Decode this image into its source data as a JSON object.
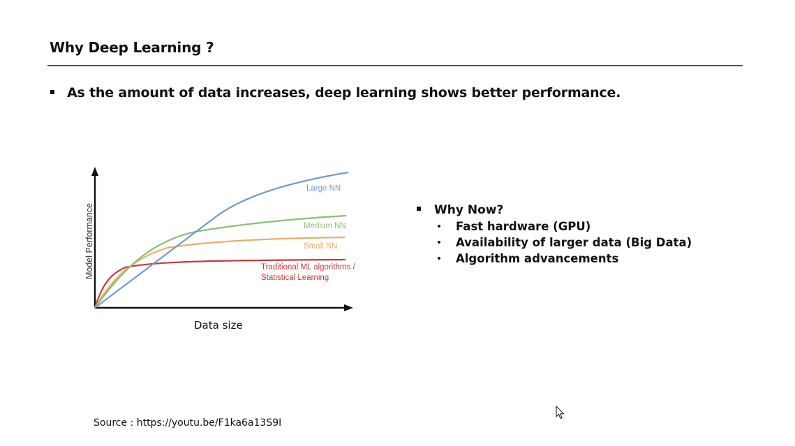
{
  "title": "Why Deep Learning ?",
  "bullet": "As the amount of data increases, deep learning shows better performance.",
  "why_now": {
    "heading": "Why Now?",
    "items": [
      "Fast hardware (GPU)",
      "Availability of larger data (Big Data)",
      "Algorithm advancements"
    ]
  },
  "source": "Source : https://youtu.be/F1ka6a13S9I",
  "colors": {
    "title_rule": "#3f4aa8",
    "large_nn": "#6f9ad4",
    "medium_nn": "#8cbf6e",
    "small_nn": "#e8ad6c",
    "traditional": "#c9383a"
  },
  "chart_data": {
    "type": "line",
    "xlabel": "Data size",
    "ylabel": "Model Performance",
    "series": [
      {
        "name": "Large NN"
      },
      {
        "name": "Medium NN"
      },
      {
        "name": "Small NN"
      },
      {
        "name": "Traditional ML algorithms / Statistical Learning"
      }
    ]
  }
}
